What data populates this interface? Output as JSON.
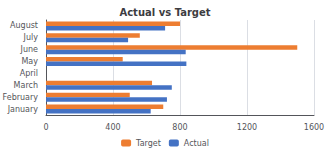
{
  "chart_data": {
    "type": "bar",
    "orientation": "horizontal",
    "title": "Actual vs Target",
    "categories": [
      "January",
      "February",
      "March",
      "April",
      "May",
      "June",
      "July",
      "August"
    ],
    "series": [
      {
        "name": "Target",
        "color": "#ED7D31",
        "values": [
          700,
          500,
          633,
          0,
          458,
          1500,
          560,
          800
        ]
      },
      {
        "name": "Actual",
        "color": "#4472C4",
        "values": [
          625,
          722,
          751,
          0,
          838,
          834,
          490,
          711
        ]
      }
    ],
    "xlim": [
      0,
      1600
    ],
    "xticks": [
      0,
      400,
      800,
      1200,
      1600
    ],
    "grid": true,
    "legend": "bottom"
  }
}
